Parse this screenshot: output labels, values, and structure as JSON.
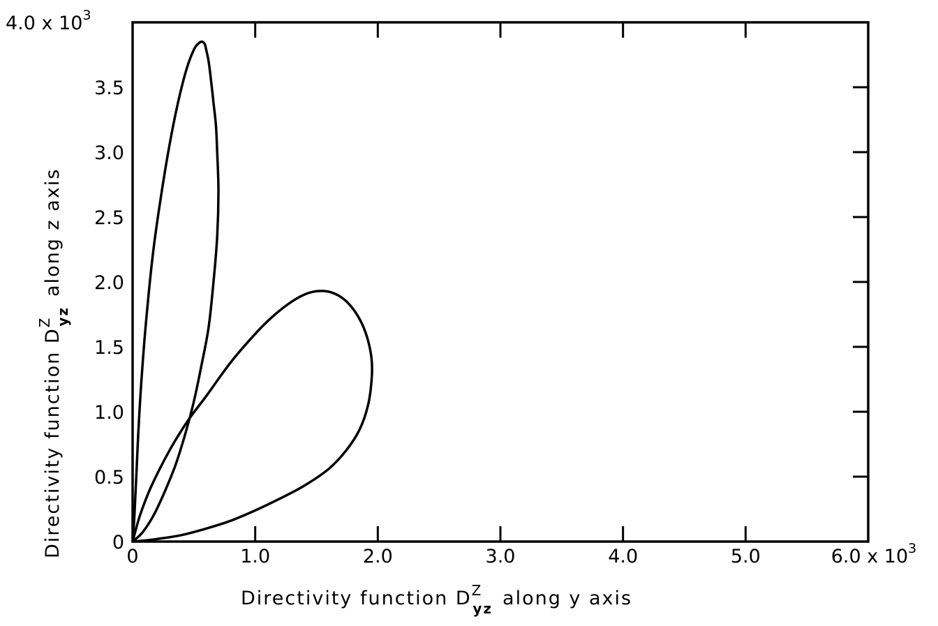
{
  "chart_data": {
    "type": "line",
    "title": "",
    "xlabel": {
      "prefix": "Directivity function D",
      "sup": "Z",
      "sub": "yz",
      "suffix": "along y axis"
    },
    "ylabel": {
      "prefix": "Directivity function D",
      "sup": "Z",
      "sub": "yz",
      "suffix": "along z axis"
    },
    "xlim": [
      0,
      6000
    ],
    "ylim": [
      0,
      4000
    ],
    "x_ticks": [
      0,
      1000,
      2000,
      3000,
      4000,
      5000,
      6000
    ],
    "y_ticks": [
      0,
      500,
      1000,
      1500,
      2000,
      2500,
      3000,
      3500,
      4000
    ],
    "x_tick_labels": [
      "0",
      "1.0",
      "2.0",
      "3.0",
      "4.0",
      "5.0",
      "6.0 x 10"
    ],
    "y_tick_labels": [
      "0",
      "0.5",
      "1.0",
      "1.5",
      "2.0",
      "2.5",
      "3.0",
      "3.5",
      "4.0 x 10"
    ],
    "multiplier_exponent": "3",
    "grid": false,
    "series": [
      {
        "x": [
          0,
          15,
          30,
          50,
          80,
          120,
          170,
          230,
          300,
          370,
          440,
          500,
          540,
          570,
          590,
          600,
          620,
          640,
          660,
          680,
          690,
          700,
          690,
          660,
          620,
          560,
          500,
          430,
          350,
          260,
          170,
          80,
          0
        ],
        "y": [
          0,
          200,
          500,
          900,
          1350,
          1800,
          2250,
          2650,
          3050,
          3380,
          3640,
          3790,
          3840,
          3850,
          3830,
          3790,
          3700,
          3550,
          3380,
          3200,
          3000,
          2700,
          2350,
          2000,
          1650,
          1350,
          1080,
          830,
          590,
          380,
          200,
          70,
          0
        ]
      },
      {
        "x": [
          0,
          60,
          150,
          300,
          450,
          600,
          800,
          1000,
          1150,
          1300,
          1420,
          1520,
          1620,
          1720,
          1800,
          1870,
          1920,
          1950,
          1950,
          1920,
          1850,
          1740,
          1600,
          1400,
          1200,
          1000,
          800,
          600,
          400,
          200,
          60,
          0
        ],
        "y": [
          0,
          200,
          420,
          700,
          930,
          1120,
          1380,
          1600,
          1740,
          1850,
          1910,
          1930,
          1920,
          1870,
          1790,
          1680,
          1550,
          1400,
          1250,
          1050,
          860,
          700,
          560,
          430,
          330,
          240,
          160,
          100,
          50,
          20,
          5,
          0
        ]
      }
    ]
  }
}
